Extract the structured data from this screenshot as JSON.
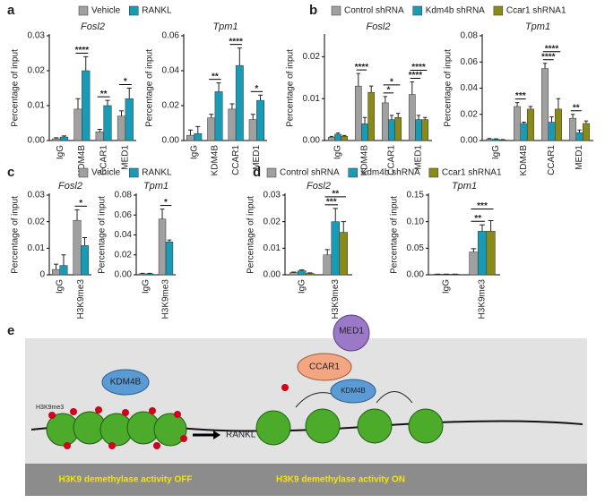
{
  "chart_data": [
    {
      "type": "bar",
      "panel": "a",
      "title": "Fosl2",
      "ylabel": "Percentage of input",
      "categories": [
        "IgG",
        "KDM4B",
        "CCAR1",
        "MED1"
      ],
      "series": [
        {
          "name": "Vehicle",
          "color": "#a0a0a0",
          "values": [
            0.0005,
            0.009,
            0.0025,
            0.007
          ],
          "errors": [
            0.0003,
            0.003,
            0.0007,
            0.0015
          ]
        },
        {
          "name": "RANKL",
          "color": "#1a9bb5",
          "values": [
            0.001,
            0.02,
            0.01,
            0.012
          ],
          "errors": [
            0.0003,
            0.004,
            0.0015,
            0.003
          ]
        }
      ],
      "ylim": [
        0,
        0.03
      ],
      "yticks": [
        {
          "value": 0,
          "label": "0.00"
        },
        0.01,
        0.02,
        0.03
      ],
      "annotations": [
        {
          "text": "****",
          "category": 1
        },
        {
          "text": "**",
          "category": 2
        },
        {
          "text": "*",
          "category": 3
        }
      ]
    },
    {
      "type": "bar",
      "title": "Tpm1",
      "ylabel": "Percentage of input",
      "categories": [
        "IgG",
        "KDM4B",
        "CCAR1",
        "MED1"
      ],
      "series": [
        {
          "color": "#a0a0a0",
          "values": [
            0.003,
            0.013,
            0.018,
            0.012
          ],
          "errors": [
            0.003,
            0.002,
            0.003,
            0.003
          ]
        },
        {
          "color": "#1a9bb5",
          "values": [
            0.004,
            0.028,
            0.043,
            0.023
          ],
          "errors": [
            0.004,
            0.005,
            0.01,
            0.003
          ]
        }
      ],
      "ylim": [
        0,
        0.06
      ],
      "yticks": [
        {
          "value": 0,
          "label": "0.00"
        },
        0.02,
        0.04,
        0.06
      ],
      "annotations": [
        {
          "text": "**",
          "category": 1
        },
        {
          "text": "****",
          "category": 2
        },
        {
          "text": "*",
          "category": 3
        }
      ]
    },
    {
      "type": "bar",
      "panel": "b",
      "title": "Fosl2",
      "ylabel": "Percentage of input",
      "categories": [
        "IgG",
        "KDM4B",
        "CCAR1",
        "MED1"
      ],
      "series": [
        {
          "name": "Control shRNA",
          "color": "#a0a0a0",
          "values": [
            0.0008,
            0.013,
            0.009,
            0.011
          ],
          "errors": [
            0.0002,
            0.003,
            0.0015,
            0.003
          ]
        },
        {
          "name": "Kdm4b shRNA",
          "color": "#1a9bb5",
          "values": [
            0.0015,
            0.004,
            0.005,
            0.005
          ],
          "errors": [
            0.0003,
            0.0015,
            0.001,
            0.001
          ]
        },
        {
          "name": "Ccar1 shRNA1",
          "color": "#8a8a1a",
          "values": [
            0.001,
            0.0115,
            0.0055,
            0.005
          ],
          "errors": [
            0.0002,
            0.0015,
            0.001,
            0.0005
          ]
        }
      ],
      "ylim": [
        0,
        0.025
      ],
      "yticks": [
        {
          "value": 0,
          "label": "0.00"
        },
        0.01,
        0.02
      ],
      "annotations": [
        {
          "text": "****",
          "category": 1,
          "compare": [
            0,
            1
          ]
        },
        {
          "text": "*",
          "category": 2,
          "compare": [
            0,
            1
          ]
        },
        {
          "text": "*",
          "category": 2,
          "compare": [
            0,
            2
          ]
        },
        {
          "text": "****",
          "category": 3,
          "compare": [
            0,
            1
          ]
        },
        {
          "text": "****",
          "category": 3,
          "compare": [
            0,
            2
          ]
        }
      ]
    },
    {
      "type": "bar",
      "title": "Tpm1",
      "ylabel": "Percentage of input",
      "categories": [
        "IgG",
        "KDM4B",
        "CCAR1",
        "MED1"
      ],
      "series": [
        {
          "color": "#a0a0a0",
          "values": [
            0.001,
            0.026,
            0.055,
            0.017
          ],
          "errors": [
            0.0005,
            0.003,
            0.004,
            0.003
          ]
        },
        {
          "color": "#1a9bb5",
          "values": [
            0.001,
            0.013,
            0.014,
            0.006
          ],
          "errors": [
            0.0003,
            0.001,
            0.004,
            0.002
          ]
        },
        {
          "color": "#8a8a1a",
          "values": [
            0.0005,
            0.024,
            0.024,
            0.013
          ],
          "errors": [
            0.0003,
            0.002,
            0.008,
            0.002
          ]
        }
      ],
      "ylim": [
        0,
        0.08
      ],
      "yticks": [
        {
          "value": 0,
          "label": "0.00"
        },
        0.02,
        0.04,
        0.06,
        0.08
      ],
      "annotations": [
        {
          "text": "***",
          "category": 1,
          "compare": [
            0,
            1
          ]
        },
        {
          "text": "****",
          "category": 2,
          "compare": [
            0,
            1
          ]
        },
        {
          "text": "****",
          "category": 2,
          "compare": [
            0,
            2
          ]
        },
        {
          "text": "**",
          "category": 3,
          "compare": [
            0,
            1
          ]
        }
      ]
    },
    {
      "type": "bar",
      "panel": "c",
      "title": "Fosl2",
      "ylabel": "Percentage of input",
      "categories": [
        "IgG",
        "H3K9me3"
      ],
      "series": [
        {
          "name": "Vehicle",
          "color": "#a0a0a0",
          "values": [
            0.002,
            0.0205
          ],
          "errors": [
            0.002,
            0.004
          ]
        },
        {
          "name": "RANKL",
          "color": "#1a9bb5",
          "values": [
            0.0035,
            0.011
          ],
          "errors": [
            0.004,
            0.003
          ]
        }
      ],
      "ylim": [
        0,
        0.03
      ],
      "yticks": [
        0,
        0.01,
        0.02,
        0.03
      ],
      "annotations": [
        {
          "text": "*",
          "category": 1
        }
      ]
    },
    {
      "type": "bar",
      "title": "Tpm1",
      "ylabel": "Percentage of input",
      "categories": [
        "IgG",
        "H3K9me3"
      ],
      "series": [
        {
          "color": "#a0a0a0",
          "values": [
            0.001,
            0.056
          ],
          "errors": [
            0.0005,
            0.01
          ]
        },
        {
          "color": "#1a9bb5",
          "values": [
            0.001,
            0.033
          ],
          "errors": [
            0.0005,
            0.002
          ]
        }
      ],
      "ylim": [
        0,
        0.08
      ],
      "yticks": [
        {
          "value": 0,
          "label": "0.00"
        },
        0.02,
        0.04,
        0.06,
        0.08
      ],
      "annotations": [
        {
          "text": "*",
          "category": 1
        }
      ]
    },
    {
      "type": "bar",
      "panel": "d",
      "title": "Fosl2",
      "ylabel": "Percentage of input",
      "categories": [
        "IgG",
        "H3K9me3"
      ],
      "series": [
        {
          "name": "Control shRNA",
          "color": "#a0a0a0",
          "values": [
            0.0008,
            0.0075
          ],
          "errors": [
            0.0002,
            0.002
          ]
        },
        {
          "name": "Kdm4b shRNA",
          "color": "#1a9bb5",
          "values": [
            0.0015,
            0.02
          ],
          "errors": [
            0.0003,
            0.005
          ]
        },
        {
          "name": "Ccar1 shRNA1",
          "color": "#8a8a1a",
          "values": [
            0.0005,
            0.016
          ],
          "errors": [
            0.0002,
            0.004
          ]
        }
      ],
      "ylim": [
        0,
        0.03
      ],
      "yticks": [
        {
          "value": 0,
          "label": "0.00"
        },
        0.01,
        0.02,
        0.03
      ],
      "annotations": [
        {
          "text": "***",
          "category": 1,
          "compare": [
            0,
            1
          ]
        },
        {
          "text": "**",
          "category": 1,
          "compare": [
            0,
            2
          ]
        }
      ]
    },
    {
      "type": "bar",
      "title": "Tpm1",
      "ylabel": "Percentage of input",
      "categories": [
        "IgG",
        "H3K9me3"
      ],
      "series": [
        {
          "color": "#a0a0a0",
          "values": [
            0.001,
            0.043
          ],
          "errors": [
            0.0003,
            0.006
          ]
        },
        {
          "color": "#1a9bb5",
          "values": [
            0.001,
            0.082
          ],
          "errors": [
            0.0003,
            0.012
          ]
        },
        {
          "color": "#8a8a1a",
          "values": [
            0.001,
            0.082
          ],
          "errors": [
            0.0003,
            0.02
          ]
        }
      ],
      "ylim": [
        0,
        0.15
      ],
      "yticks": [
        {
          "value": 0,
          "label": "0.00"
        },
        0.05,
        {
          "value": 0.1,
          "label": "0.10"
        },
        0.15
      ],
      "annotations": [
        {
          "text": "**",
          "category": 1,
          "compare": [
            0,
            1
          ]
        },
        {
          "text": "***",
          "category": 1,
          "compare": [
            0,
            2
          ]
        }
      ]
    }
  ],
  "diagram": {
    "panel": "e",
    "free_protein": "KDM4B",
    "mark": "H3K9me3",
    "stimulus": "RANKL",
    "complex": [
      "MED1",
      "CCAR1",
      "KDM4B"
    ],
    "state_off": "H3K9 demethylase activity OFF",
    "state_on": "H3K9 demethylase activity ON"
  }
}
